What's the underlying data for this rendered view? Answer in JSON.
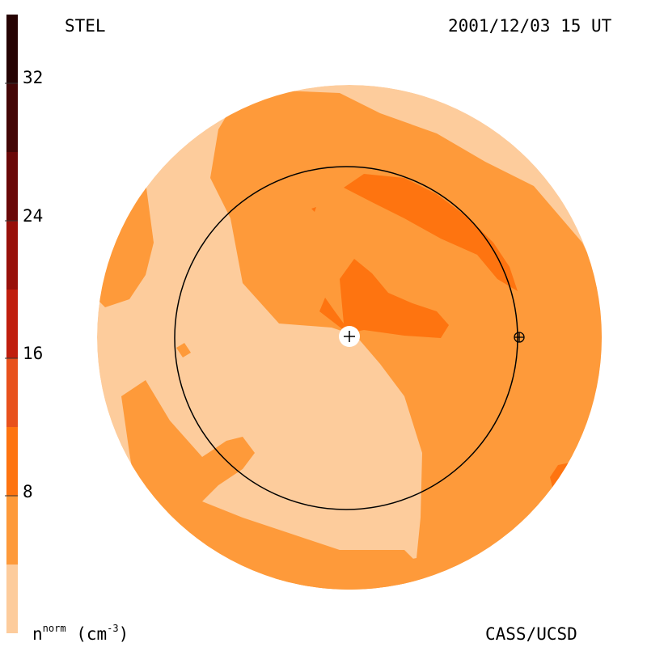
{
  "header": {
    "instrument": "STEL",
    "timestamp": "2001/12/03 15 UT"
  },
  "footer": {
    "credit": "CASS/UCSD"
  },
  "colorbar": {
    "label_main": "n",
    "label_sup": "norm",
    "label_unit_open": "(cm",
    "label_unit_sup": "-3",
    "label_unit_close": ")",
    "tick_labels": [
      "8",
      "16",
      "24",
      "32"
    ],
    "levels": [
      {
        "from": 0,
        "to": 4,
        "color": "#fdcc9c"
      },
      {
        "from": 4,
        "to": 8,
        "color": "#fe9a3a"
      },
      {
        "from": 8,
        "to": 12,
        "color": "#fe7410"
      },
      {
        "from": 12,
        "to": 16,
        "color": "#e8511c"
      },
      {
        "from": 16,
        "to": 20,
        "color": "#c01e0e"
      },
      {
        "from": 20,
        "to": 24,
        "color": "#98100a"
      },
      {
        "from": 24,
        "to": 28,
        "color": "#6a0808"
      },
      {
        "from": 28,
        "to": 32,
        "color": "#430606"
      },
      {
        "from": 32,
        "to": 36,
        "color": "#260303"
      }
    ]
  },
  "map": {
    "background_color": "#fdcc9c",
    "mid_color": "#fe9a3a",
    "high_color": "#fe7410",
    "sun_marker": "sun-plus-icon",
    "earth_marker": "earth-crosshair-icon"
  }
}
